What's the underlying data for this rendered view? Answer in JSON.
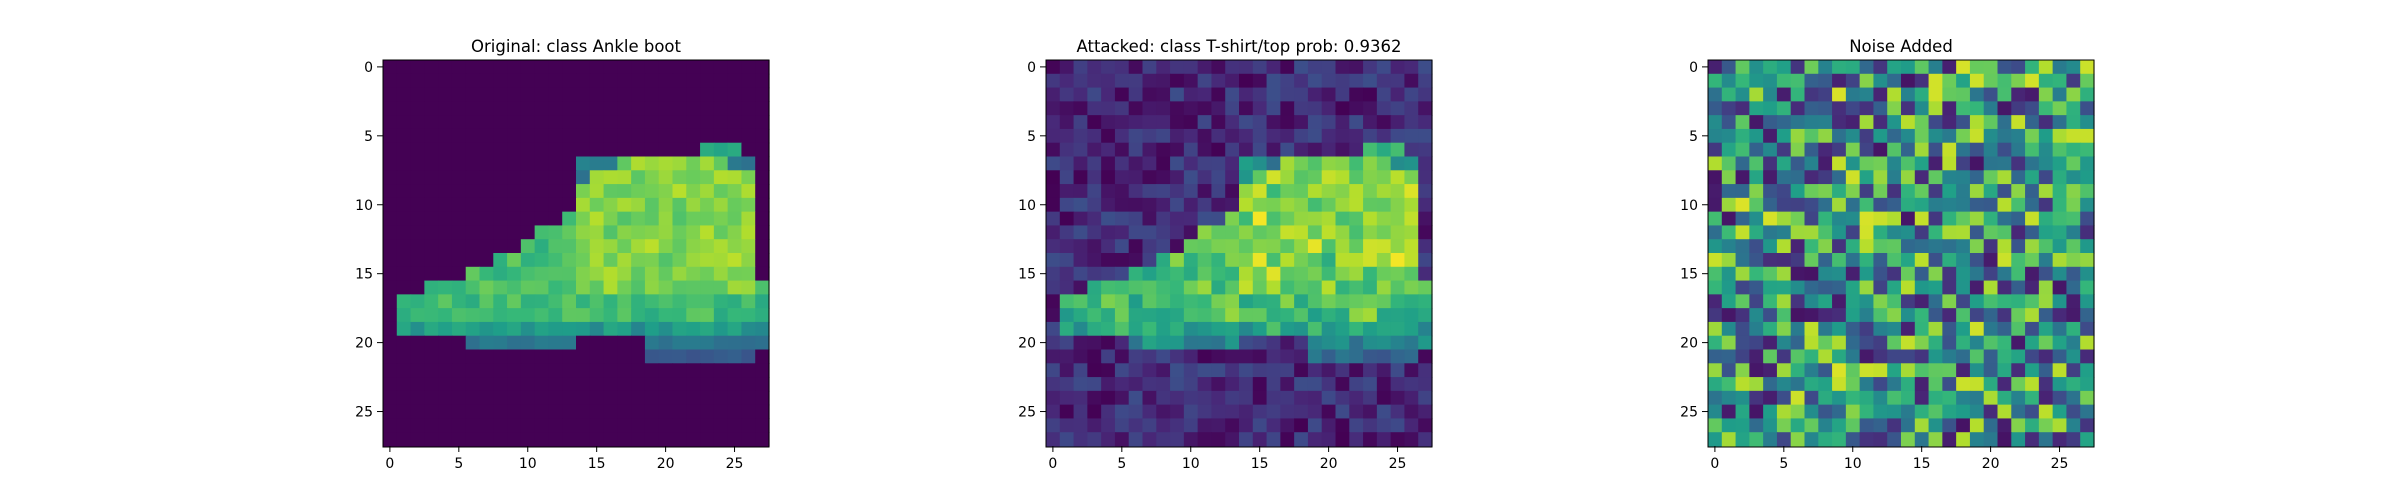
{
  "figure": {
    "background": "#ffffff"
  },
  "colormap": "viridis",
  "chart_data": [
    {
      "type": "heatmap",
      "title": "Original: class Ankle boot",
      "xlabel": "",
      "ylabel": "",
      "shape": [
        28,
        28
      ],
      "x_ticks": [
        0,
        5,
        10,
        15,
        20,
        25
      ],
      "y_ticks": [
        0,
        5,
        10,
        15,
        20,
        25
      ],
      "x_tick_labels": [
        "0",
        "5",
        "10",
        "15",
        "20",
        "25"
      ],
      "y_tick_labels": [
        "0",
        "5",
        "10",
        "15",
        "20",
        "25"
      ],
      "xlim": [
        -0.5,
        27.5
      ],
      "ylim": [
        27.5,
        -0.5
      ],
      "value_range": [
        0,
        1
      ],
      "grid": false,
      "content": "ankle boot silhouette on dark background"
    },
    {
      "type": "heatmap",
      "title": "Attacked: class T-shirt/top prob: 0.9362",
      "xlabel": "",
      "ylabel": "",
      "shape": [
        28,
        28
      ],
      "x_ticks": [
        0,
        5,
        10,
        15,
        20,
        25
      ],
      "y_ticks": [
        0,
        5,
        10,
        15,
        20,
        25
      ],
      "x_tick_labels": [
        "0",
        "5",
        "10",
        "15",
        "20",
        "25"
      ],
      "y_tick_labels": [
        "0",
        "5",
        "10",
        "15",
        "20",
        "25"
      ],
      "xlim": [
        -0.5,
        27.5
      ],
      "ylim": [
        27.5,
        -0.5
      ],
      "value_range": [
        0,
        1
      ],
      "grid": false,
      "predicted_class": "T-shirt/top",
      "probability": 0.9362,
      "content": "ankle boot with adversarial noise added"
    },
    {
      "type": "heatmap",
      "title": "Noise Added",
      "xlabel": "",
      "ylabel": "",
      "shape": [
        28,
        28
      ],
      "x_ticks": [
        0,
        5,
        10,
        15,
        20,
        25
      ],
      "y_ticks": [
        0,
        5,
        10,
        15,
        20,
        25
      ],
      "x_tick_labels": [
        "0",
        "5",
        "10",
        "15",
        "20",
        "25"
      ],
      "y_tick_labels": [
        "0",
        "5",
        "10",
        "15",
        "20",
        "25"
      ],
      "xlim": [
        -0.5,
        27.5
      ],
      "ylim": [
        27.5,
        -0.5
      ],
      "value_range": [
        -1,
        1
      ],
      "grid": false,
      "content": "random per-pixel perturbation"
    }
  ]
}
